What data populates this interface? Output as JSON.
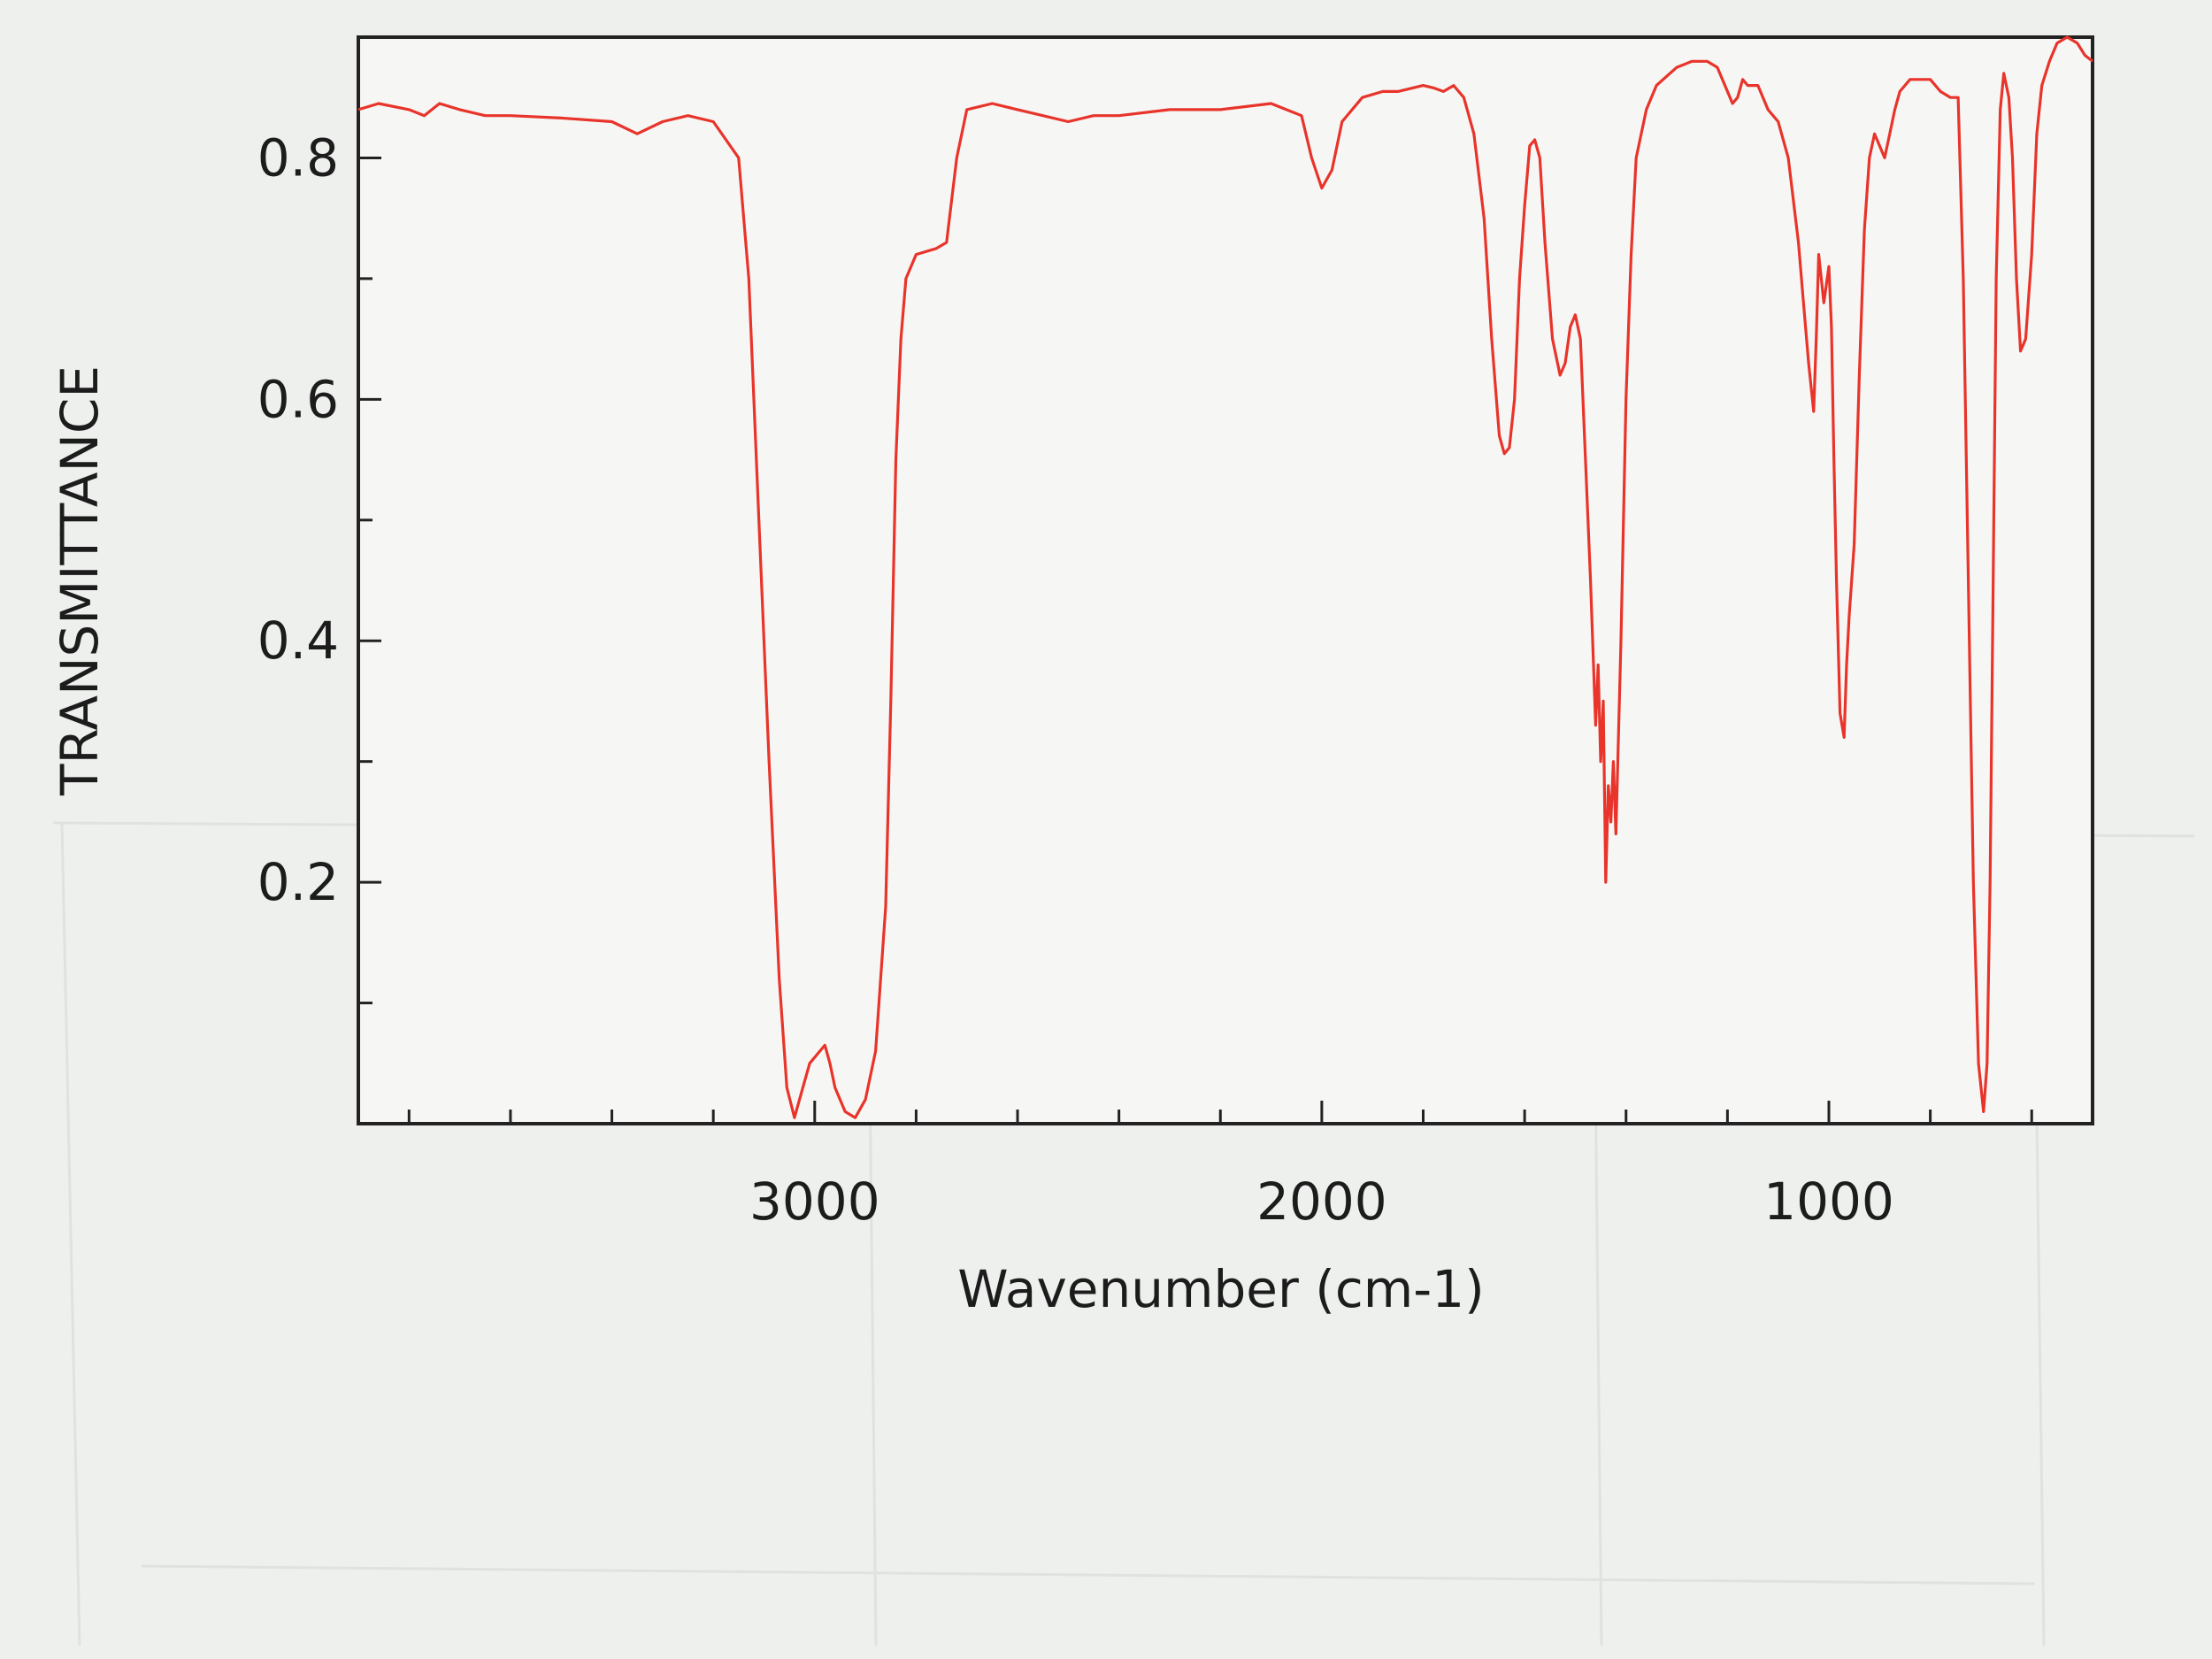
{
  "chart_data": {
    "type": "line",
    "title": "",
    "xlabel": "Wavenumber (cm-1)",
    "ylabel": "TRANSMITTANCE",
    "xlim": [
      3900,
      480
    ],
    "ylim": [
      0,
      0.9
    ],
    "x_reversed": true,
    "grid": false,
    "legend": "none",
    "x_major_ticks": [
      3000,
      2000,
      1000
    ],
    "x_tick_labels": [
      "3000",
      "2000",
      "1000"
    ],
    "x_minor_ticks": [
      3800,
      3600,
      3400,
      3200,
      2800,
      2600,
      2400,
      2200,
      1800,
      1600,
      1400,
      1200,
      800,
      600
    ],
    "y_major_ticks": [
      0.2,
      0.4,
      0.6,
      0.8
    ],
    "y_tick_labels": [
      "0.2",
      "0.4",
      "0.6",
      "0.8"
    ],
    "y_minor_ticks": [
      0.1,
      0.3,
      0.5,
      0.7
    ],
    "series": [
      {
        "color": "#e8342a",
        "points": [
          [
            3900,
            0.84
          ],
          [
            3860,
            0.845
          ],
          [
            3800,
            0.84
          ],
          [
            3770,
            0.835
          ],
          [
            3740,
            0.845
          ],
          [
            3700,
            0.84
          ],
          [
            3650,
            0.835
          ],
          [
            3600,
            0.835
          ],
          [
            3500,
            0.833
          ],
          [
            3400,
            0.83
          ],
          [
            3350,
            0.82
          ],
          [
            3300,
            0.83
          ],
          [
            3250,
            0.835
          ],
          [
            3200,
            0.83
          ],
          [
            3150,
            0.8
          ],
          [
            3130,
            0.7
          ],
          [
            3110,
            0.5
          ],
          [
            3090,
            0.3
          ],
          [
            3070,
            0.12
          ],
          [
            3055,
            0.03
          ],
          [
            3040,
            0.005
          ],
          [
            3030,
            0.02
          ],
          [
            3010,
            0.05
          ],
          [
            2990,
            0.06
          ],
          [
            2980,
            0.065
          ],
          [
            2970,
            0.05
          ],
          [
            2960,
            0.03
          ],
          [
            2940,
            0.01
          ],
          [
            2920,
            0.005
          ],
          [
            2900,
            0.02
          ],
          [
            2880,
            0.06
          ],
          [
            2860,
            0.18
          ],
          [
            2850,
            0.35
          ],
          [
            2840,
            0.55
          ],
          [
            2830,
            0.65
          ],
          [
            2820,
            0.7
          ],
          [
            2800,
            0.72
          ],
          [
            2760,
            0.725
          ],
          [
            2740,
            0.73
          ],
          [
            2720,
            0.8
          ],
          [
            2700,
            0.84
          ],
          [
            2650,
            0.845
          ],
          [
            2600,
            0.84
          ],
          [
            2550,
            0.835
          ],
          [
            2500,
            0.83
          ],
          [
            2450,
            0.835
          ],
          [
            2400,
            0.835
          ],
          [
            2300,
            0.84
          ],
          [
            2200,
            0.84
          ],
          [
            2100,
            0.845
          ],
          [
            2040,
            0.835
          ],
          [
            2020,
            0.8
          ],
          [
            2000,
            0.775
          ],
          [
            1980,
            0.79
          ],
          [
            1960,
            0.83
          ],
          [
            1920,
            0.85
          ],
          [
            1880,
            0.855
          ],
          [
            1850,
            0.855
          ],
          [
            1820,
            0.858
          ],
          [
            1800,
            0.86
          ],
          [
            1780,
            0.858
          ],
          [
            1760,
            0.855
          ],
          [
            1740,
            0.86
          ],
          [
            1720,
            0.85
          ],
          [
            1700,
            0.82
          ],
          [
            1680,
            0.75
          ],
          [
            1665,
            0.65
          ],
          [
            1650,
            0.57
          ],
          [
            1640,
            0.555
          ],
          [
            1630,
            0.56
          ],
          [
            1620,
            0.6
          ],
          [
            1610,
            0.7
          ],
          [
            1600,
            0.76
          ],
          [
            1590,
            0.81
          ],
          [
            1580,
            0.815
          ],
          [
            1570,
            0.8
          ],
          [
            1560,
            0.73
          ],
          [
            1545,
            0.65
          ],
          [
            1530,
            0.62
          ],
          [
            1520,
            0.63
          ],
          [
            1510,
            0.66
          ],
          [
            1500,
            0.67
          ],
          [
            1490,
            0.65
          ],
          [
            1480,
            0.55
          ],
          [
            1470,
            0.45
          ],
          [
            1460,
            0.33
          ],
          [
            1455,
            0.38
          ],
          [
            1450,
            0.3
          ],
          [
            1445,
            0.35
          ],
          [
            1440,
            0.2
          ],
          [
            1435,
            0.28
          ],
          [
            1430,
            0.25
          ],
          [
            1425,
            0.3
          ],
          [
            1420,
            0.24
          ],
          [
            1410,
            0.4
          ],
          [
            1400,
            0.6
          ],
          [
            1390,
            0.72
          ],
          [
            1380,
            0.8
          ],
          [
            1360,
            0.84
          ],
          [
            1340,
            0.86
          ],
          [
            1300,
            0.875
          ],
          [
            1270,
            0.88
          ],
          [
            1240,
            0.88
          ],
          [
            1220,
            0.875
          ],
          [
            1200,
            0.855
          ],
          [
            1190,
            0.845
          ],
          [
            1180,
            0.85
          ],
          [
            1170,
            0.865
          ],
          [
            1160,
            0.86
          ],
          [
            1140,
            0.86
          ],
          [
            1120,
            0.84
          ],
          [
            1100,
            0.83
          ],
          [
            1080,
            0.8
          ],
          [
            1060,
            0.73
          ],
          [
            1050,
            0.68
          ],
          [
            1040,
            0.63
          ],
          [
            1030,
            0.59
          ],
          [
            1025,
            0.65
          ],
          [
            1020,
            0.72
          ],
          [
            1010,
            0.68
          ],
          [
            1000,
            0.71
          ],
          [
            995,
            0.66
          ],
          [
            990,
            0.55
          ],
          [
            985,
            0.45
          ],
          [
            978,
            0.34
          ],
          [
            970,
            0.32
          ],
          [
            965,
            0.38
          ],
          [
            960,
            0.42
          ],
          [
            950,
            0.48
          ],
          [
            940,
            0.62
          ],
          [
            930,
            0.74
          ],
          [
            920,
            0.8
          ],
          [
            910,
            0.82
          ],
          [
            900,
            0.81
          ],
          [
            890,
            0.8
          ],
          [
            880,
            0.82
          ],
          [
            870,
            0.84
          ],
          [
            860,
            0.855
          ],
          [
            840,
            0.865
          ],
          [
            800,
            0.865
          ],
          [
            780,
            0.855
          ],
          [
            760,
            0.85
          ],
          [
            745,
            0.85
          ],
          [
            735,
            0.7
          ],
          [
            725,
            0.45
          ],
          [
            715,
            0.2
          ],
          [
            705,
            0.05
          ],
          [
            695,
            0.01
          ],
          [
            688,
            0.05
          ],
          [
            682,
            0.2
          ],
          [
            676,
            0.45
          ],
          [
            670,
            0.7
          ],
          [
            662,
            0.84
          ],
          [
            655,
            0.87
          ],
          [
            645,
            0.85
          ],
          [
            638,
            0.8
          ],
          [
            630,
            0.7
          ],
          [
            622,
            0.64
          ],
          [
            612,
            0.65
          ],
          [
            600,
            0.72
          ],
          [
            590,
            0.82
          ],
          [
            580,
            0.86
          ],
          [
            565,
            0.88
          ],
          [
            550,
            0.895
          ],
          [
            530,
            0.9
          ],
          [
            510,
            0.895
          ],
          [
            495,
            0.885
          ],
          [
            480,
            0.88
          ]
        ]
      }
    ]
  }
}
